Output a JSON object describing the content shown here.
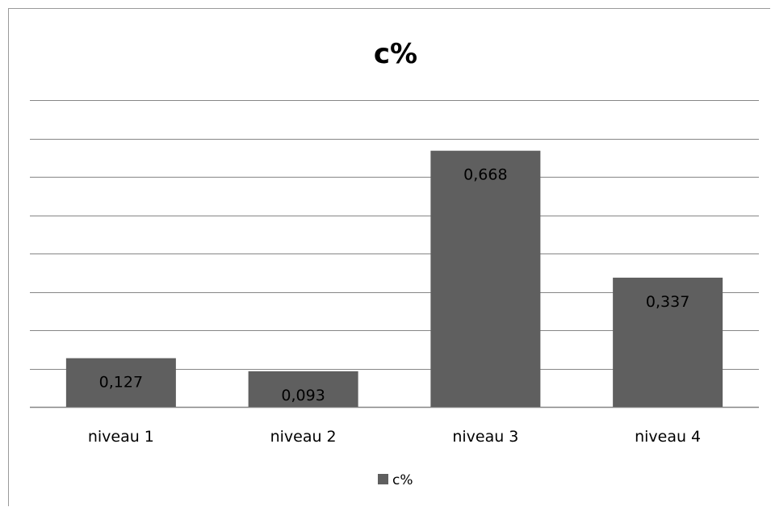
{
  "chart_data": {
    "type": "bar",
    "title": "c%",
    "xlabel": "",
    "ylabel": "",
    "categories": [
      "niveau 1",
      "niveau 2",
      "niveau 3",
      "niveau 4"
    ],
    "series": [
      {
        "name": "c%",
        "values": [
          0.127,
          0.093,
          0.668,
          0.337
        ],
        "labels": [
          "0,127",
          "0,093",
          "0,668",
          "0,337"
        ]
      }
    ],
    "ylim": [
      0,
      0.8
    ],
    "ytick_step": 0.1,
    "grid": true,
    "legend_position": "bottom",
    "bar_color": "#5f5f5f",
    "grid_color": "#868686"
  }
}
